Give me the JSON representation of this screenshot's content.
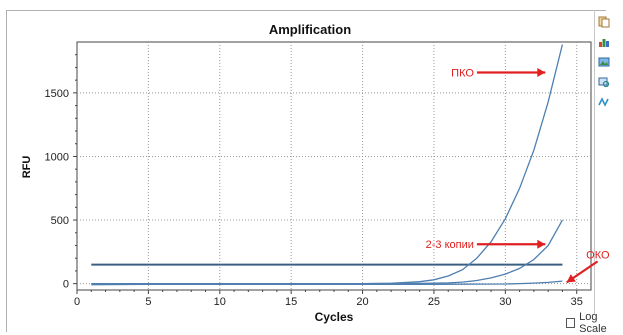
{
  "window": {
    "log_scale_label": "Log Scale",
    "log_scale_checked": false
  },
  "toolbar": {
    "icons": [
      "copy-icon",
      "bar-chart-icon",
      "picture-icon",
      "zoom-icon",
      "wave-icon"
    ]
  },
  "chart_data": {
    "type": "line",
    "title": "Amplification",
    "xlabel": "Cycles",
    "ylabel": "RFU",
    "xlim": [
      0,
      36
    ],
    "ylim": [
      -50,
      1900
    ],
    "x_ticks": [
      0,
      5,
      10,
      15,
      20,
      25,
      30,
      35
    ],
    "y_ticks": [
      0,
      500,
      1000,
      1500
    ],
    "grid": true,
    "grid_style": "dotted",
    "threshold": 150,
    "series": [
      {
        "x": [
          1,
          5,
          10,
          15,
          20,
          22,
          24,
          25,
          26,
          27,
          28,
          29,
          30,
          31,
          32,
          33,
          34
        ],
        "values": [
          0,
          0,
          0,
          0,
          0,
          3,
          15,
          30,
          60,
          110,
          200,
          330,
          510,
          750,
          1050,
          1430,
          1880
        ]
      },
      {
        "x": [
          1,
          5,
          10,
          15,
          20,
          24,
          26,
          27,
          28,
          29,
          30,
          31,
          32,
          33,
          34
        ],
        "values": [
          0,
          0,
          0,
          0,
          0,
          2,
          6,
          12,
          25,
          45,
          75,
          120,
          190,
          300,
          500
        ]
      },
      {
        "x": [
          1,
          5,
          10,
          15,
          20,
          25,
          30,
          31,
          32,
          33,
          34
        ],
        "values": [
          -8,
          -6,
          -5,
          -5,
          -6,
          -5,
          -3,
          0,
          4,
          10,
          20
        ]
      }
    ],
    "annotations": [
      {
        "text": "ПКО",
        "x": 27.8,
        "y": 1660,
        "arrow_to": [
          32.8,
          1660
        ]
      },
      {
        "text": "2-3 копии",
        "x": 27.8,
        "y": 310,
        "arrow_to": [
          32.8,
          310
        ]
      },
      {
        "text": "ОКО",
        "x": 37.3,
        "y": 230,
        "arrow_to": [
          34.3,
          10
        ]
      }
    ],
    "colors": {
      "curve": "#4e7fb0",
      "threshold": "#3b5f82",
      "annotation": "#e02020",
      "grid": "#999999"
    }
  }
}
